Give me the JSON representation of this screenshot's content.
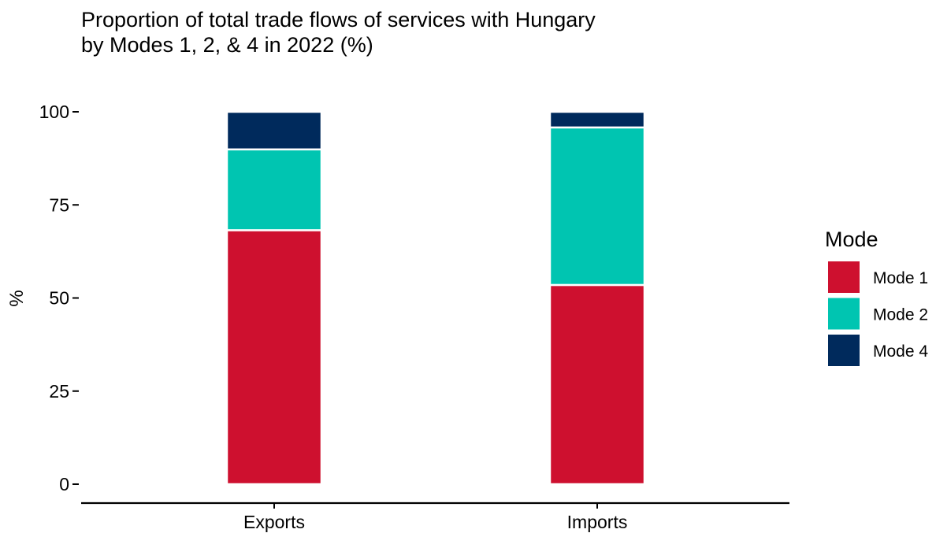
{
  "chart_data": {
    "type": "bar",
    "stacked": true,
    "title_lines": [
      "Proportion of total trade flows of services with Hungary",
      "by Modes 1, 2, & 4 in 2022 (%)"
    ],
    "xlabel": "",
    "ylabel": "%",
    "categories": [
      "Exports",
      "Imports"
    ],
    "ylim": [
      0,
      100
    ],
    "yticks": [
      0,
      25,
      50,
      75,
      100
    ],
    "grid": false,
    "legend": {
      "title": "Mode",
      "position": "right"
    },
    "series": [
      {
        "name": "Mode 1",
        "color": "#CE102F",
        "values": [
          68.2,
          53.5
        ]
      },
      {
        "name": "Mode 2",
        "color": "#00C5B1",
        "values": [
          21.7,
          42.3
        ]
      },
      {
        "name": "Mode 4",
        "color": "#002A5C",
        "values": [
          10.1,
          4.2
        ]
      }
    ]
  }
}
